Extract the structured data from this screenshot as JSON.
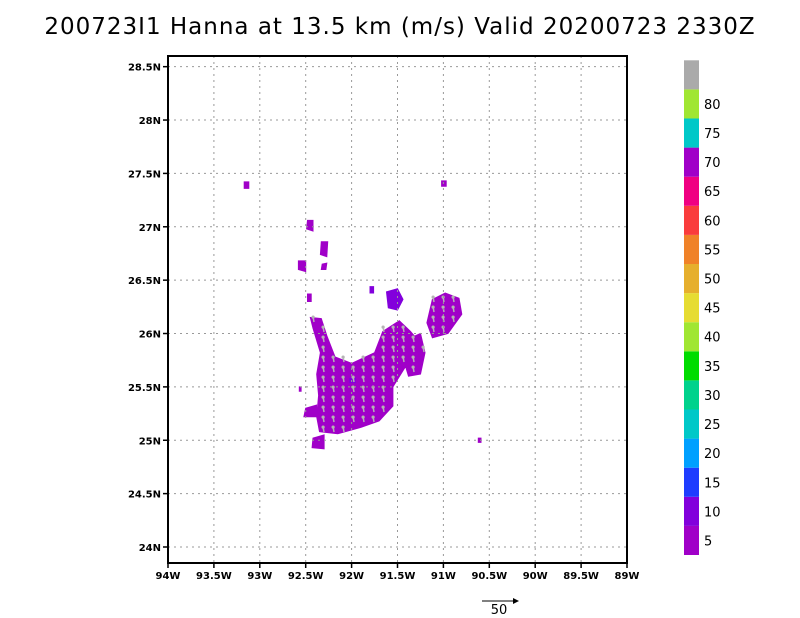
{
  "title": "200723I1 Hanna at 13.5 km (m/s) Valid 20200723 2330Z",
  "map": {
    "lon_range": [
      -94.0,
      -89.0
    ],
    "lat_range": [
      23.85,
      28.6
    ],
    "lat_ticks": [
      {
        "value": 28.5,
        "label": "28.5N"
      },
      {
        "value": 28.0,
        "label": "28N"
      },
      {
        "value": 27.5,
        "label": "27.5N"
      },
      {
        "value": 27.0,
        "label": "27N"
      },
      {
        "value": 26.5,
        "label": "26.5N"
      },
      {
        "value": 26.0,
        "label": "26N"
      },
      {
        "value": 25.5,
        "label": "25.5N"
      },
      {
        "value": 25.0,
        "label": "25N"
      },
      {
        "value": 24.5,
        "label": "24.5N"
      },
      {
        "value": 24.0,
        "label": "24N"
      }
    ],
    "lon_ticks": [
      {
        "value": -94.0,
        "label": "94W"
      },
      {
        "value": -93.5,
        "label": "93.5W"
      },
      {
        "value": -93.0,
        "label": "93W"
      },
      {
        "value": -92.5,
        "label": "92.5W"
      },
      {
        "value": -92.0,
        "label": "92W"
      },
      {
        "value": -91.5,
        "label": "91.5W"
      },
      {
        "value": -91.0,
        "label": "91W"
      },
      {
        "value": -90.5,
        "label": "90.5W"
      },
      {
        "value": -90.0,
        "label": "90W"
      },
      {
        "value": -89.5,
        "label": "89.5W"
      },
      {
        "value": -89.0,
        "label": "89W"
      }
    ],
    "grid": "dotted",
    "wind_regions": [
      {
        "level": 5,
        "points": [
          [
            -92.27,
            25.98
          ],
          [
            -92.18,
            25.78
          ],
          [
            -92.0,
            25.72
          ],
          [
            -91.75,
            25.82
          ],
          [
            -91.66,
            26.02
          ],
          [
            -91.48,
            26.12
          ],
          [
            -91.36,
            26.02
          ],
          [
            -91.24,
            25.9
          ],
          [
            -91.25,
            25.72
          ],
          [
            -91.42,
            25.68
          ],
          [
            -91.55,
            25.5
          ],
          [
            -91.55,
            25.32
          ],
          [
            -91.7,
            25.18
          ],
          [
            -91.9,
            25.12
          ],
          [
            -92.15,
            25.06
          ],
          [
            -92.35,
            25.08
          ],
          [
            -92.38,
            25.22
          ],
          [
            -92.36,
            25.42
          ],
          [
            -92.38,
            25.62
          ],
          [
            -92.34,
            25.82
          ],
          [
            -92.42,
            26.05
          ],
          [
            -92.45,
            26.15
          ],
          [
            -92.33,
            26.14
          ]
        ]
      },
      {
        "level": 5,
        "points": [
          [
            -91.12,
            26.32
          ],
          [
            -90.98,
            26.38
          ],
          [
            -90.83,
            26.33
          ],
          [
            -90.8,
            26.18
          ],
          [
            -90.95,
            26.0
          ],
          [
            -91.12,
            25.96
          ],
          [
            -91.18,
            26.1
          ]
        ]
      },
      {
        "level": 5,
        "points": [
          [
            -91.38,
            25.95
          ],
          [
            -91.25,
            26.0
          ],
          [
            -91.2,
            25.82
          ],
          [
            -91.25,
            25.62
          ],
          [
            -91.38,
            25.6
          ],
          [
            -91.45,
            25.8
          ]
        ]
      },
      {
        "level": 5,
        "points": [
          [
            -92.5,
            25.3
          ],
          [
            -92.38,
            25.33
          ],
          [
            -92.38,
            25.22
          ],
          [
            -92.52,
            25.22
          ]
        ]
      },
      {
        "level": 5,
        "points": [
          [
            -92.42,
            25.02
          ],
          [
            -92.3,
            25.05
          ],
          [
            -92.3,
            24.92
          ],
          [
            -92.43,
            24.93
          ]
        ]
      },
      {
        "level": 5,
        "points": [
          [
            -92.58,
            26.68
          ],
          [
            -92.5,
            26.68
          ],
          [
            -92.5,
            26.58
          ],
          [
            -92.58,
            26.6
          ]
        ]
      },
      {
        "level": 5,
        "points": [
          [
            -92.33,
            26.86
          ],
          [
            -92.26,
            26.86
          ],
          [
            -92.27,
            26.72
          ],
          [
            -92.34,
            26.74
          ]
        ]
      },
      {
        "level": 5,
        "points": [
          [
            -92.48,
            27.06
          ],
          [
            -92.42,
            27.06
          ],
          [
            -92.42,
            26.96
          ],
          [
            -92.49,
            26.98
          ]
        ]
      },
      {
        "level": 5,
        "points": [
          [
            -92.32,
            26.65
          ],
          [
            -92.27,
            26.66
          ],
          [
            -92.28,
            26.6
          ],
          [
            -92.33,
            26.6
          ]
        ]
      },
      {
        "level": 5,
        "points": [
          [
            -93.17,
            27.42
          ],
          [
            -93.12,
            27.42
          ],
          [
            -93.12,
            27.36
          ],
          [
            -93.17,
            27.36
          ]
        ]
      },
      {
        "level": 5,
        "points": [
          [
            -91.02,
            27.43
          ],
          [
            -90.97,
            27.43
          ],
          [
            -90.97,
            27.38
          ],
          [
            -91.02,
            27.38
          ]
        ]
      },
      {
        "level": 5,
        "points": [
          [
            -92.57,
            25.5
          ],
          [
            -92.55,
            25.5
          ],
          [
            -92.55,
            25.46
          ],
          [
            -92.57,
            25.46
          ]
        ]
      },
      {
        "level": 5,
        "points": [
          [
            -92.48,
            26.37
          ],
          [
            -92.44,
            26.37
          ],
          [
            -92.44,
            26.3
          ],
          [
            -92.48,
            26.3
          ]
        ]
      },
      {
        "level": 5,
        "points": [
          [
            -90.62,
            25.02
          ],
          [
            -90.59,
            25.02
          ],
          [
            -90.59,
            24.98
          ],
          [
            -90.62,
            24.98
          ]
        ]
      },
      {
        "level": 10,
        "points": [
          [
            -91.62,
            26.39
          ],
          [
            -91.5,
            26.42
          ],
          [
            -91.44,
            26.32
          ],
          [
            -91.5,
            26.22
          ],
          [
            -91.6,
            26.24
          ]
        ]
      },
      {
        "level": 10,
        "points": [
          [
            -91.8,
            26.44
          ],
          [
            -91.76,
            26.44
          ],
          [
            -91.76,
            26.38
          ],
          [
            -91.8,
            26.38
          ]
        ]
      },
      {
        "level": 10,
        "points": [
          [
            -92.02,
            25.58
          ],
          [
            -91.96,
            25.58
          ],
          [
            -91.96,
            25.54
          ],
          [
            -92.02,
            25.54
          ]
        ]
      }
    ],
    "vector_scale": {
      "label": "50",
      "value": 50
    }
  },
  "colorbar": {
    "levels": [
      {
        "label": "5",
        "color": "#a000c8"
      },
      {
        "label": "10",
        "color": "#8200dc"
      },
      {
        "label": "15",
        "color": "#1e3cff"
      },
      {
        "label": "20",
        "color": "#00a0ff"
      },
      {
        "label": "25",
        "color": "#00c8c8"
      },
      {
        "label": "30",
        "color": "#00d28c"
      },
      {
        "label": "35",
        "color": "#00dc00"
      },
      {
        "label": "40",
        "color": "#a0e632"
      },
      {
        "label": "45",
        "color": "#e6dc32"
      },
      {
        "label": "50",
        "color": "#e6af2d"
      },
      {
        "label": "55",
        "color": "#f08228"
      },
      {
        "label": "60",
        "color": "#fa3c3c"
      },
      {
        "label": "65",
        "color": "#f00082"
      },
      {
        "label": "70",
        "color": "#a000c8"
      },
      {
        "label": "75",
        "color": "#00c8c8"
      },
      {
        "label": "80",
        "color": "#a0e632"
      },
      {
        "label": "",
        "color": "#aaaaaa"
      }
    ]
  }
}
